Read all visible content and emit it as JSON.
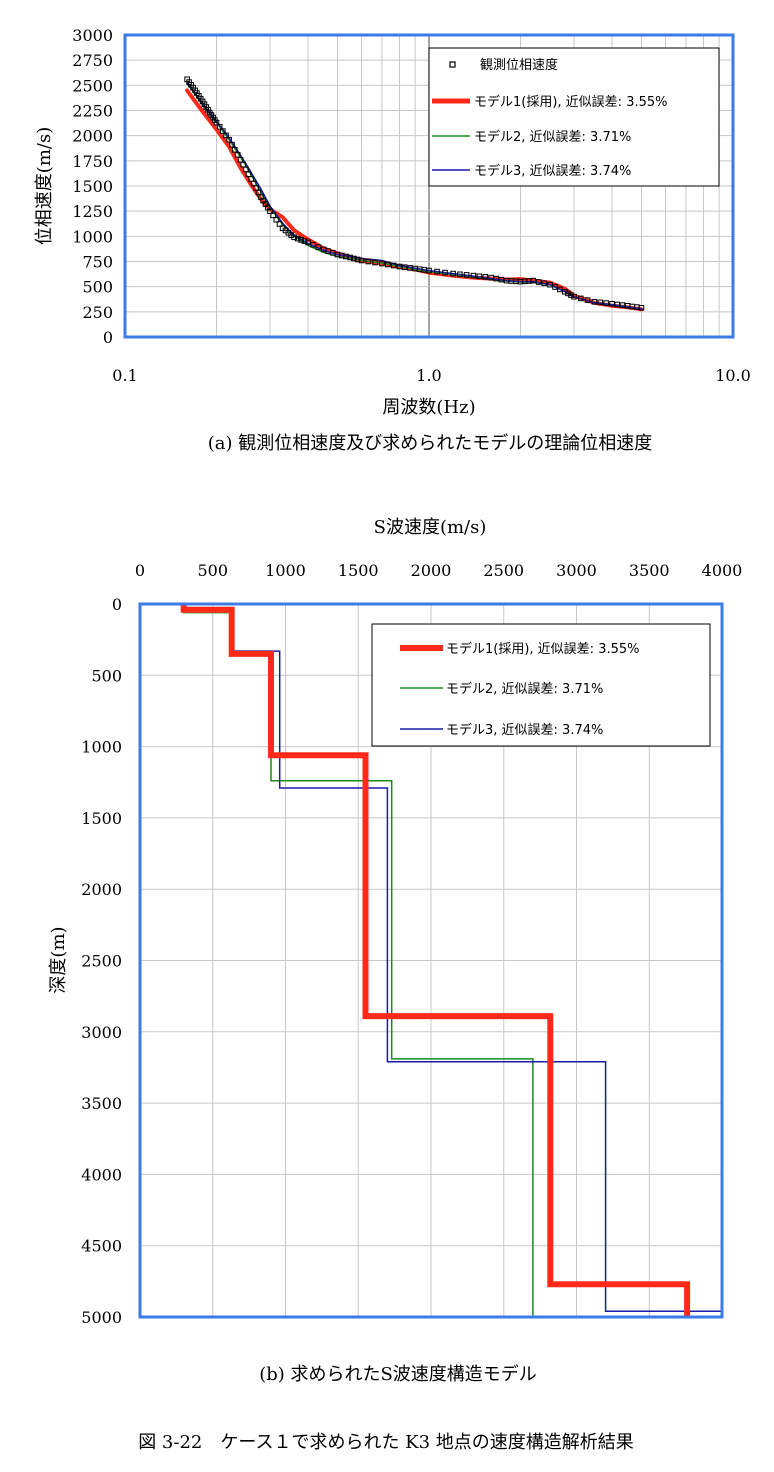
{
  "chart_data": [
    {
      "type": "line",
      "xlabel": "周波数(Hz)",
      "ylabel": "位相速度(m/s)",
      "x_scale": "log",
      "xlim": [
        0.1,
        10.0
      ],
      "ylim": [
        0,
        3000
      ],
      "x_ticks": [
        "0.1",
        "1.0",
        "10.0"
      ],
      "y_ticks": [
        "0",
        "250",
        "500",
        "750",
        "1000",
        "1250",
        "1500",
        "1750",
        "2000",
        "2250",
        "2500",
        "2750",
        "3000"
      ],
      "grid": true,
      "legend_position": "top-right",
      "caption": "(a) 観測位相速度及び求められたモデルの理論位相速度",
      "series": [
        {
          "name": "観測位相速度",
          "color": "#000000",
          "marker": "square-open",
          "x": [
            0.16,
            0.17,
            0.18,
            0.19,
            0.2,
            0.22,
            0.24,
            0.26,
            0.28,
            0.3,
            0.33,
            0.36,
            0.4,
            0.45,
            0.5,
            0.55,
            0.6,
            0.7,
            0.8,
            0.9,
            1.0,
            1.2,
            1.4,
            1.6,
            1.8,
            2.0,
            2.2,
            2.5,
            2.8,
            3.0,
            3.5,
            4.0,
            4.5,
            5.0
          ],
          "y": [
            2560,
            2450,
            2340,
            2230,
            2130,
            1960,
            1760,
            1570,
            1390,
            1250,
            1080,
            990,
            940,
            870,
            820,
            790,
            760,
            730,
            700,
            680,
            660,
            630,
            610,
            590,
            560,
            550,
            560,
            520,
            450,
            400,
            350,
            330,
            310,
            290
          ]
        },
        {
          "name": "モデル1(採用), 近似誤差: 3.55%",
          "color": "#ff2a1a",
          "width": 4,
          "x": [
            0.16,
            0.17,
            0.18,
            0.19,
            0.2,
            0.22,
            0.24,
            0.26,
            0.28,
            0.3,
            0.33,
            0.36,
            0.4,
            0.45,
            0.5,
            0.55,
            0.6,
            0.7,
            0.8,
            0.9,
            1.0,
            1.2,
            1.4,
            1.6,
            1.8,
            2.0,
            2.2,
            2.5,
            2.8,
            3.0,
            3.5,
            4.0,
            4.5,
            5.0
          ],
          "y": [
            2450,
            2340,
            2240,
            2150,
            2060,
            1890,
            1680,
            1510,
            1370,
            1270,
            1190,
            1060,
            970,
            880,
            830,
            790,
            760,
            730,
            700,
            670,
            640,
            610,
            590,
            580,
            570,
            575,
            560,
            540,
            480,
            410,
            340,
            310,
            295,
            275
          ]
        },
        {
          "name": "モデル2, 近似誤差: 3.71%",
          "color": "#1a8a1a",
          "width": 1.5,
          "x": [
            0.16,
            0.18,
            0.2,
            0.22,
            0.25,
            0.28,
            0.3,
            0.33,
            0.36,
            0.4,
            0.45,
            0.5,
            0.55,
            0.6,
            0.7,
            0.8,
            1.0,
            1.2,
            1.4,
            1.6,
            1.8,
            2.0,
            2.2,
            2.5,
            2.8,
            3.0,
            3.5,
            4.0,
            4.5,
            5.0
          ],
          "y": [
            2520,
            2310,
            2130,
            1960,
            1700,
            1440,
            1280,
            1120,
            1000,
            910,
            840,
            800,
            780,
            760,
            735,
            700,
            650,
            620,
            600,
            575,
            555,
            545,
            545,
            520,
            450,
            400,
            340,
            320,
            300,
            280
          ]
        },
        {
          "name": "モデル3, 近似誤差: 3.74%",
          "color": "#1a1aa8",
          "width": 1.5,
          "x": [
            0.16,
            0.18,
            0.2,
            0.22,
            0.25,
            0.28,
            0.3,
            0.33,
            0.36,
            0.4,
            0.45,
            0.5,
            0.55,
            0.6,
            0.7,
            0.8,
            1.0,
            1.2,
            1.4,
            1.6,
            1.8,
            2.0,
            2.2,
            2.5,
            2.8,
            3.0,
            3.5,
            4.0,
            4.5,
            5.0
          ],
          "y": [
            2530,
            2320,
            2140,
            1980,
            1720,
            1470,
            1300,
            1130,
            1010,
            930,
            860,
            820,
            800,
            780,
            760,
            710,
            660,
            630,
            605,
            580,
            560,
            550,
            550,
            520,
            450,
            400,
            340,
            320,
            300,
            280
          ]
        }
      ]
    },
    {
      "type": "line",
      "title": "S波速度(m/s)",
      "ylabel": "深度(m)",
      "xlim": [
        0,
        4000
      ],
      "ylim": [
        5000,
        0
      ],
      "x_ticks": [
        "0",
        "500",
        "1000",
        "1500",
        "2000",
        "2500",
        "3000",
        "3500",
        "4000"
      ],
      "y_ticks": [
        "0",
        "500",
        "1000",
        "1500",
        "2000",
        "2500",
        "3000",
        "3500",
        "4000",
        "4500",
        "5000"
      ],
      "grid": true,
      "legend_position": "top-right",
      "caption": "(b) 求められたS波速度構造モデル",
      "series": [
        {
          "name": "モデル1(採用), 近似誤差: 3.55%",
          "color": "#ff2a1a",
          "width": 6,
          "x": [
            300,
            300,
            630,
            630,
            900,
            900,
            1550,
            1550,
            2820,
            2820,
            3760,
            3760
          ],
          "y": [
            0,
            40,
            40,
            350,
            350,
            1060,
            1060,
            2890,
            2890,
            4770,
            4770,
            5000
          ]
        },
        {
          "name": "モデル2, 近似誤差: 3.71%",
          "color": "#1a8a1a",
          "width": 1.5,
          "x": [
            300,
            300,
            620,
            620,
            900,
            900,
            1730,
            1730,
            2700,
            2700,
            4000
          ],
          "y": [
            0,
            60,
            60,
            330,
            330,
            1240,
            1240,
            3190,
            3190,
            5000,
            5000
          ]
        },
        {
          "name": "モデル3, 近似誤差: 3.74%",
          "color": "#1a1aa8",
          "width": 1.5,
          "x": [
            300,
            300,
            620,
            620,
            960,
            960,
            1700,
            1700,
            3200,
            3200,
            4000
          ],
          "y": [
            0,
            50,
            50,
            330,
            330,
            1290,
            1290,
            3210,
            3210,
            4960,
            4960
          ]
        }
      ]
    }
  ],
  "figure_caption": "図 3-22　ケース１で求められた K3 地点の速度構造解析結果"
}
